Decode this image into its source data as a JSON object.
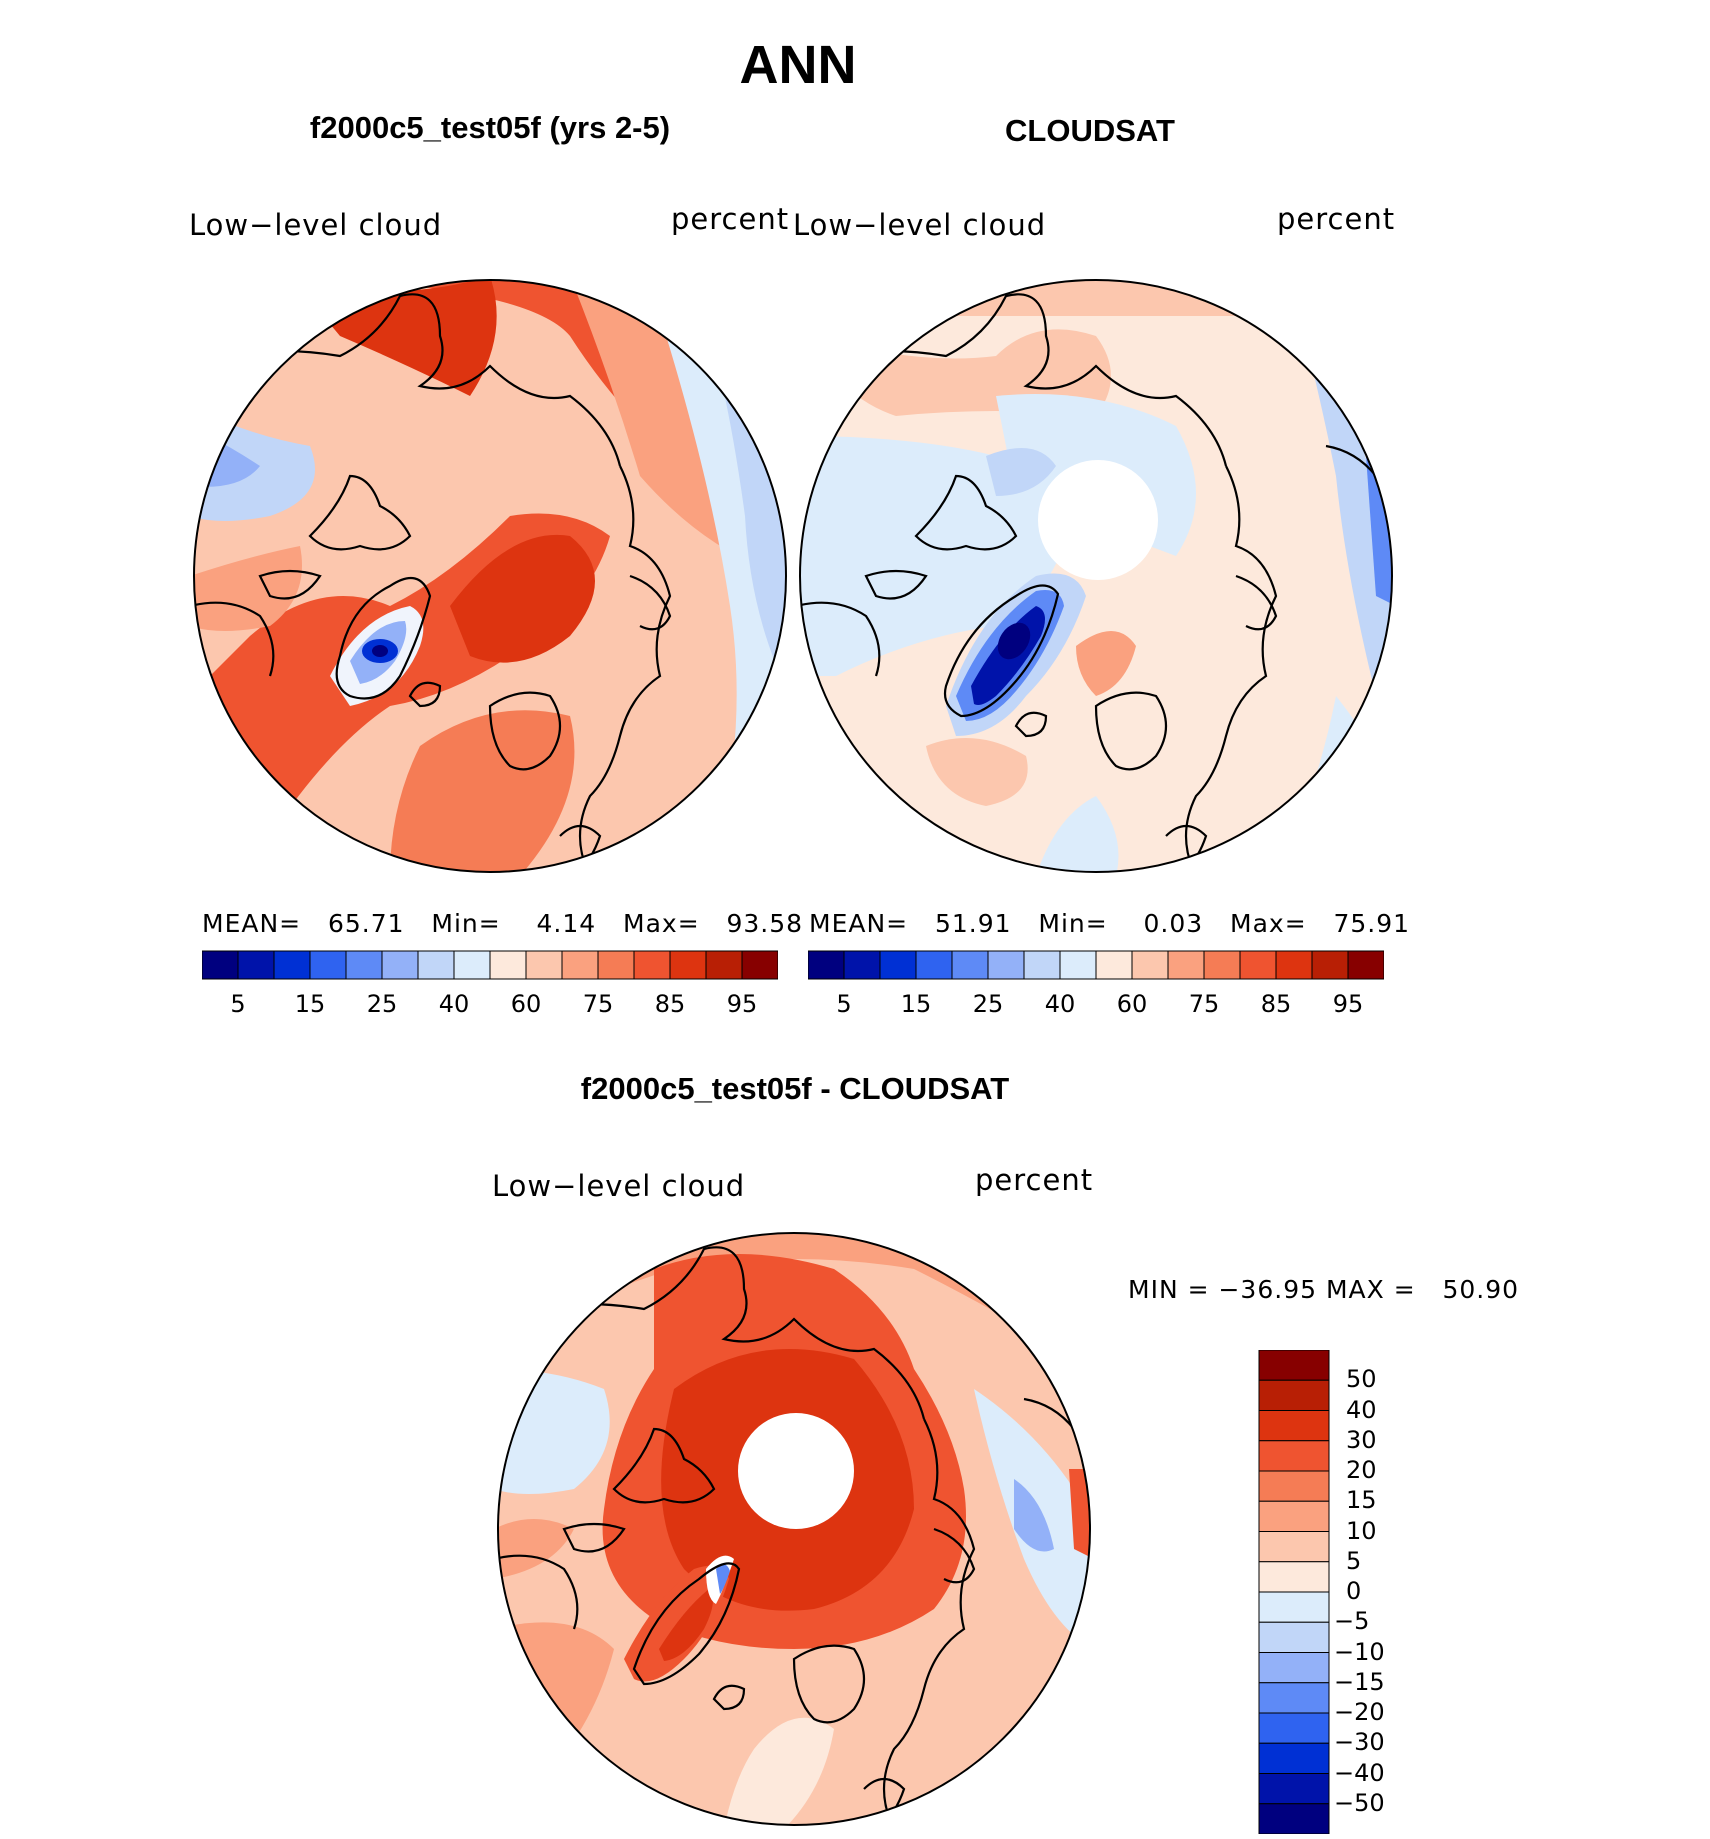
{
  "title": "ANN",
  "panels": [
    {
      "id": "model",
      "subtitle": "f2000c5_test05f (yrs 2-5)",
      "left_label": "Low−level cloud",
      "right_label": "percent",
      "stats": {
        "mean_label": "MEAN=",
        "mean": "65.71",
        "min_label": "Min=",
        "min": "4.14",
        "max_label": "Max=",
        "max": "93.58"
      }
    },
    {
      "id": "obs",
      "subtitle": "CLOUDSAT",
      "left_label": "Low−level cloud",
      "right_label": "percent",
      "stats": {
        "mean_label": "MEAN=",
        "mean": "51.91",
        "min_label": "Min=",
        "min": "0.03",
        "max_label": "Max=",
        "max": "75.91"
      }
    },
    {
      "id": "diff",
      "subtitle": "f2000c5_test05f - CLOUDSAT",
      "left_label": "Low−level cloud",
      "right_label": "percent",
      "stats_text": "MIN = −36.95 MAX =   50.90"
    }
  ],
  "colorbar_horizontal": {
    "ticks": [
      "5",
      "15",
      "25",
      "40",
      "60",
      "75",
      "85",
      "95"
    ],
    "colors": [
      "#00007f",
      "#0013aa",
      "#0030d4",
      "#2f63f0",
      "#5e8af6",
      "#93b1f8",
      "#c1d6f8",
      "#dcecfb",
      "#fde9dc",
      "#fcc7ae",
      "#faa17f",
      "#f57c55",
      "#ef5430",
      "#dd3410",
      "#b81f05",
      "#870000"
    ]
  },
  "colorbar_vertical": {
    "ticks": [
      "50",
      "40",
      "30",
      "20",
      "15",
      "10",
      "5",
      "0",
      "−5",
      "−10",
      "−15",
      "−20",
      "−30",
      "−40",
      "−50"
    ],
    "colors": [
      "#870000",
      "#b81f05",
      "#dd3410",
      "#ef5430",
      "#f57c55",
      "#faa17f",
      "#fcc7ae",
      "#fde9dc",
      "#dcecfb",
      "#c1d6f8",
      "#93b1f8",
      "#5e8af6",
      "#2f63f0",
      "#0030d4",
      "#0013aa",
      "#00007f"
    ]
  },
  "map_colors": {
    "model": {
      "base": "#ef5430",
      "mid": "#f57c55",
      "light": "#faa17f",
      "pale": "#fcc7ae",
      "cool": "#c1d6f8",
      "deep": "#dd3410",
      "icecore": "#0030d4"
    },
    "obs": {
      "base": "#fde9dc",
      "mid": "#fcc7ae",
      "light": "#dcecfb",
      "cool": "#c1d6f8",
      "icecore": "#0013aa",
      "blue2": "#5e8af6"
    },
    "diff": {
      "base": "#fcc7ae",
      "mid": "#faa17f",
      "deep": "#dd3410",
      "strong": "#ef5430",
      "cool": "#dcecfb",
      "light": "#fde9dc"
    }
  }
}
